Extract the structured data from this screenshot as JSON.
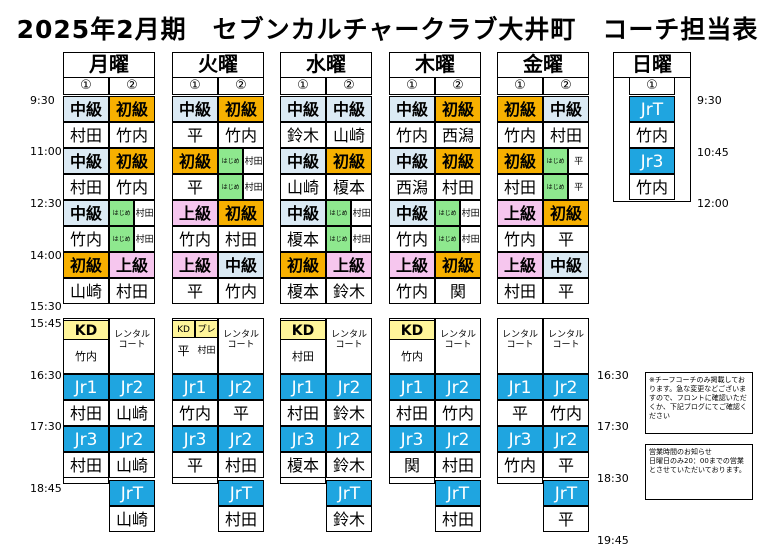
{
  "title": "2025年2月期　セブンカルチャークラブ大井町　コーチ担当表",
  "days": [
    "月曜",
    "火曜",
    "水曜",
    "木曜",
    "金曜",
    "日曜"
  ],
  "col_numbers": [
    "①",
    "②"
  ],
  "times_left": [
    "9:30",
    "11:00",
    "12:30",
    "14:00",
    "15:30",
    "15:45",
    "16:30",
    "17:30",
    "18:45"
  ],
  "times_right": [
    "16:30",
    "17:30",
    "18:30",
    "19:45"
  ],
  "sunday_times": [
    "9:30",
    "10:45",
    "12:00"
  ],
  "colors": {
    "beginner": "#f7b000",
    "inter": "#dbeaf4",
    "adv": "#f6c6ee",
    "jr": "#1fa5e0",
    "kd": "#fff59a",
    "hajime": "#8ee88e"
  },
  "labels": {
    "chu": "中級",
    "sho": "初級",
    "jo": "上級",
    "kd": "KD",
    "pure": "プレ",
    "rental": "レンタル\nコート",
    "hajimete": "はじめて",
    "jr1": "Jr1",
    "jr2": "Jr2",
    "jr3": "Jr3",
    "jrt": "JrT"
  },
  "schedule": {
    "mon": {
      "s1": [
        {
          "c": "中級",
          "n": "村田"
        },
        {
          "c": "初級",
          "n": "竹内"
        }
      ],
      "s2": [
        {
          "c": "中級",
          "n": "村田"
        },
        {
          "c": "初級",
          "n": "竹内"
        }
      ],
      "s3": [
        {
          "c": "中級",
          "n": "竹内"
        },
        {
          "h": true,
          "n": "村田"
        }
      ],
      "s4": [
        {
          "c": "初級",
          "n": "山崎"
        },
        {
          "c": "上級",
          "n": "村田"
        }
      ],
      "kd": {
        "a": "KD",
        "an": "竹内",
        "b": "レンタル\nコート"
      },
      "e1": [
        {
          "c": "Jr1",
          "n": "村田"
        },
        {
          "c": "Jr2",
          "n": "山崎"
        }
      ],
      "e2": [
        {
          "c": "Jr3",
          "n": "村田"
        },
        {
          "c": "Jr2",
          "n": "山崎"
        }
      ],
      "e3": {
        "c": "JrT",
        "n": "山崎"
      }
    },
    "tue": {
      "s1": [
        {
          "c": "中級",
          "n": "平"
        },
        {
          "c": "初級",
          "n": "竹内"
        }
      ],
      "s2": [
        {
          "c": "初級",
          "n": "平"
        },
        {
          "h": true,
          "n": "村田"
        }
      ],
      "s3": [
        {
          "c": "上級",
          "n": "竹内"
        },
        {
          "c": "初級",
          "n": "村田"
        }
      ],
      "s4": [
        {
          "c": "上級",
          "n": "平"
        },
        {
          "c": "中級",
          "n": "竹内"
        }
      ],
      "kd": {
        "a": "KD",
        "a2": "プレ",
        "an": "平",
        "an2": "村田",
        "b": "レンタル\nコート"
      },
      "e1": [
        {
          "c": "Jr1",
          "n": "竹内"
        },
        {
          "c": "Jr2",
          "n": "平"
        }
      ],
      "e2": [
        {
          "c": "Jr3",
          "n": "平"
        },
        {
          "c": "Jr2",
          "n": "村田"
        }
      ],
      "e3": {
        "c": "JrT",
        "n": "村田"
      }
    },
    "wed": {
      "s1": [
        {
          "c": "中級",
          "n": "鈴木"
        },
        {
          "c": "中級",
          "n": "山崎"
        }
      ],
      "s2": [
        {
          "c": "中級",
          "n": "山崎"
        },
        {
          "c": "初級",
          "n": "榎本"
        }
      ],
      "s3": [
        {
          "c": "中級",
          "n": "榎本"
        },
        {
          "h": true,
          "n": "村田"
        }
      ],
      "s4": [
        {
          "c": "初級",
          "n": "榎本"
        },
        {
          "c": "上級",
          "n": "鈴木"
        }
      ],
      "kd": {
        "a": "KD",
        "an": "村田",
        "b": "レンタル\nコート"
      },
      "e1": [
        {
          "c": "Jr1",
          "n": "村田"
        },
        {
          "c": "Jr2",
          "n": "鈴木"
        }
      ],
      "e2": [
        {
          "c": "Jr3",
          "n": "榎本"
        },
        {
          "c": "Jr2",
          "n": "鈴木"
        }
      ],
      "e3": {
        "c": "JrT",
        "n": "鈴木"
      }
    },
    "thu": {
      "s1": [
        {
          "c": "中級",
          "n": "竹内"
        },
        {
          "c": "初級",
          "n": "西潟"
        }
      ],
      "s2": [
        {
          "c": "中級",
          "n": "西潟"
        },
        {
          "c": "初級",
          "n": "村田"
        }
      ],
      "s3": [
        {
          "c": "中級",
          "n": "竹内"
        },
        {
          "h": true,
          "n": "村田"
        }
      ],
      "s4": [
        {
          "c": "上級",
          "n": "竹内"
        },
        {
          "c": "初級",
          "n": "関"
        }
      ],
      "kd": {
        "a": "KD",
        "an": "竹内",
        "b": "レンタル\nコート"
      },
      "e1": [
        {
          "c": "Jr1",
          "n": "村田"
        },
        {
          "c": "Jr2",
          "n": "竹内"
        }
      ],
      "e2": [
        {
          "c": "Jr3",
          "n": "関"
        },
        {
          "c": "Jr2",
          "n": "村田"
        }
      ],
      "e3": {
        "c": "JrT",
        "n": "村田"
      }
    },
    "fri": {
      "s1": [
        {
          "c": "初級",
          "n": "竹内"
        },
        {
          "c": "中級",
          "n": "村田"
        }
      ],
      "s2": [
        {
          "c": "初級",
          "n": "村田"
        },
        {
          "h": true,
          "n": "平"
        }
      ],
      "s3": [
        {
          "c": "上級",
          "n": "竹内"
        },
        {
          "c": "初級",
          "n": "平"
        }
      ],
      "s4": [
        {
          "c": "上級",
          "n": "村田"
        },
        {
          "c": "中級",
          "n": "平"
        }
      ],
      "kd": {
        "a": "レンタル\nコート",
        "b": "レンタル\nコート"
      },
      "e1": [
        {
          "c": "Jr1",
          "n": "平"
        },
        {
          "c": "Jr2",
          "n": "竹内"
        }
      ],
      "e2": [
        {
          "c": "Jr3",
          "n": "竹内"
        },
        {
          "c": "Jr2",
          "n": "平"
        }
      ],
      "e3": {
        "c": "JrT",
        "n": "平"
      }
    },
    "sun": {
      "col": "①",
      "slots": [
        {
          "c": "JrT",
          "n": "竹内"
        },
        {
          "c": "Jr3",
          "n": "竹内"
        }
      ]
    }
  },
  "notes": [
    "※チーフコーチのみ掲載しております。急な変更などございますので、フロントに確認いただくか、下記ブログにてご確認ください",
    "営業時間のお知らせ\n日曜日のみ20：00までの営業とさせていただいております。"
  ]
}
